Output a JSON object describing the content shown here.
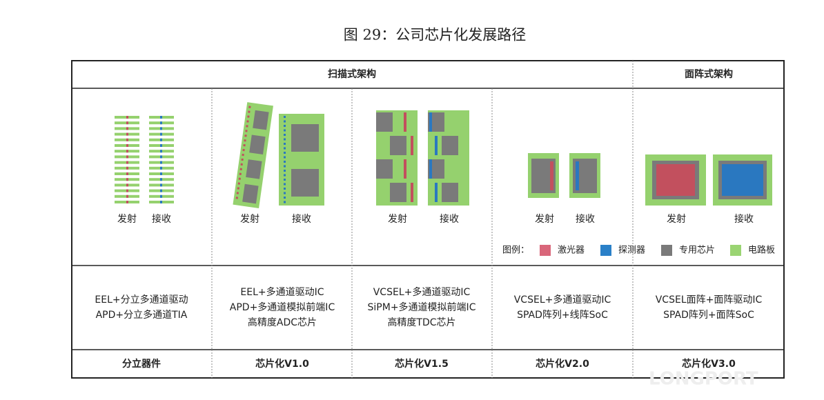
{
  "title": "图 29：公司芯片化发展路径",
  "header": {
    "scan": "扫描式架构",
    "area": "面阵式架构"
  },
  "columns": [
    {
      "tx": "发射",
      "rx": "接收",
      "desc": [
        "EEL+分立多通道驱动",
        "APD+分立多通道TIA"
      ],
      "stage": "分立器件"
    },
    {
      "tx": "发射",
      "rx": "接收",
      "desc": [
        "EEL+多通道驱动IC",
        "APD+多通道模拟前端IC",
        "高精度ADC芯片"
      ],
      "stage": "芯片化V1.0"
    },
    {
      "tx": "发射",
      "rx": "接收",
      "desc": [
        "VCSEL+多通道驱动IC",
        "SiPM+多通道模拟前端IC",
        "高精度TDC芯片"
      ],
      "stage": "芯片化V1.5"
    },
    {
      "tx": "发射",
      "rx": "接收",
      "desc": [
        "VCSEL+多通道驱动IC",
        "SPAD阵列+线阵SoC"
      ],
      "stage": "芯片化V2.0"
    },
    {
      "tx": "发射",
      "rx": "接收",
      "desc": [
        "VCSEL面阵+面阵驱动IC",
        "SPAD阵列+面阵SoC"
      ],
      "stage": "芯片化V3.0"
    }
  ],
  "legend": {
    "label": "图例：",
    "items": [
      "激光器",
      "探测器",
      "专用芯片",
      "电路板"
    ]
  },
  "watermark": "LONGPORT"
}
